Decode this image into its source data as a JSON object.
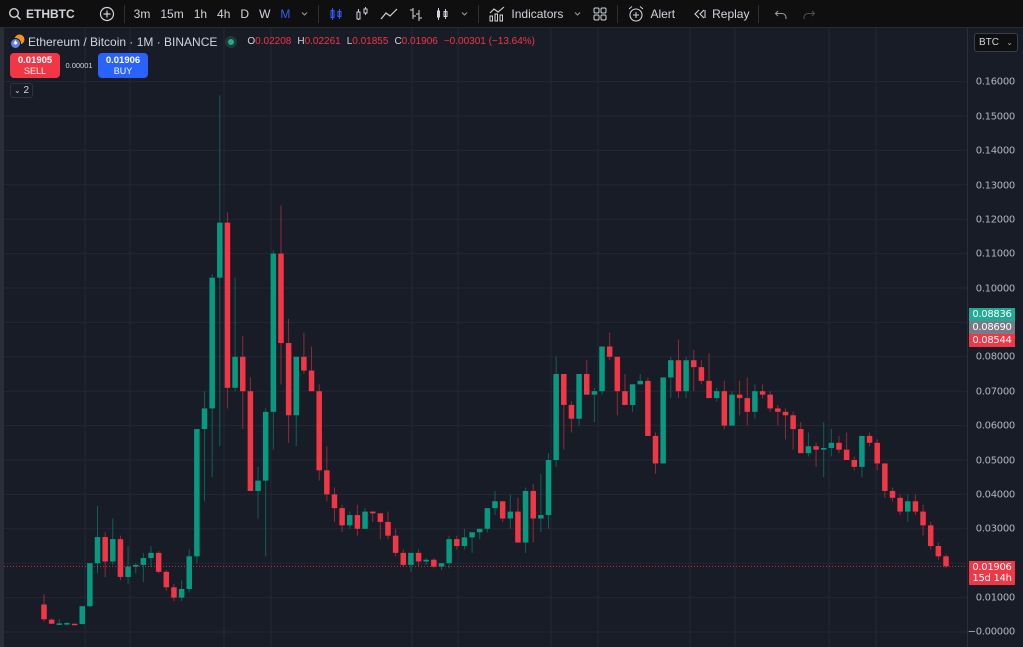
{
  "toolbar": {
    "symbol": "ETHBTC",
    "intervals": [
      "3m",
      "15m",
      "1h",
      "4h",
      "D",
      "W",
      "M"
    ],
    "active_interval": "M",
    "indicators_label": "Indicators",
    "alert_label": "Alert",
    "replay_label": "Replay"
  },
  "legend": {
    "title": "Ethereum / Bitcoin · 1M · BINANCE",
    "o_label": "O",
    "o": "0.02208",
    "h_label": "H",
    "h": "0.02261",
    "l_label": "L",
    "l": "0.01855",
    "c_label": "C",
    "c": "0.01906",
    "change": "−0.00301 (−13.64%)"
  },
  "trade": {
    "sell_price": "0.01905",
    "sell_label": "SELL",
    "spread": "0.00001",
    "buy_price": "0.01906",
    "buy_label": "BUY"
  },
  "collapse": {
    "label": "2"
  },
  "price_axis": {
    "currency": "BTC",
    "ticks": [
      "0.16000",
      "0.15000",
      "0.14000",
      "0.13000",
      "0.12000",
      "0.11000",
      "0.10000",
      "0.08000",
      "0.07000",
      "0.06000",
      "0.05000",
      "0.04000",
      "0.03000",
      "0.01000",
      "−0.00000"
    ],
    "tags": [
      {
        "value": "0.08836",
        "color": "#22ab94"
      },
      {
        "value": "0.08690",
        "color": "#787b86"
      },
      {
        "value": "0.08544",
        "color": "#f23645"
      }
    ],
    "last_price": "0.01906",
    "countdown": "15d 14h"
  },
  "colors": {
    "up": "#089981",
    "down": "#f23645",
    "accent": "#2962ff",
    "background": "#181c27"
  },
  "chart_data": {
    "type": "candlestick",
    "title": "Ethereum / Bitcoin · 1M · BINANCE",
    "ylabel": "BTC",
    "ylim": [
      -0.001,
      0.17
    ],
    "note": "Monthly OHLC candles, values estimated from pixel positions",
    "candles": [
      [
        0.008,
        0.011,
        0.003,
        0.0037
      ],
      [
        0.0036,
        0.004,
        0.0023,
        0.0024
      ],
      [
        0.0025,
        0.0037,
        0.002,
        0.0025
      ],
      [
        0.0025,
        0.003,
        0.0019,
        0.0026
      ],
      [
        0.0024,
        0.0025,
        0.002,
        0.0023
      ],
      [
        0.0023,
        0.006,
        0.0022,
        0.0075
      ],
      [
        0.0075,
        0.02,
        0.0072,
        0.02
      ],
      [
        0.02,
        0.0366,
        0.017,
        0.0276
      ],
      [
        0.0276,
        0.029,
        0.016,
        0.0205
      ],
      [
        0.0205,
        0.033,
        0.0195,
        0.027
      ],
      [
        0.027,
        0.028,
        0.015,
        0.016
      ],
      [
        0.016,
        0.025,
        0.014,
        0.019
      ],
      [
        0.019,
        0.02,
        0.017,
        0.0195
      ],
      [
        0.0195,
        0.023,
        0.0145,
        0.0215
      ],
      [
        0.0215,
        0.025,
        0.019,
        0.023
      ],
      [
        0.023,
        0.0235,
        0.017,
        0.0175
      ],
      [
        0.0175,
        0.018,
        0.012,
        0.013
      ],
      [
        0.013,
        0.014,
        0.009,
        0.01
      ],
      [
        0.01,
        0.015,
        0.009,
        0.0125
      ],
      [
        0.0125,
        0.024,
        0.0115,
        0.022
      ],
      [
        0.022,
        0.059,
        0.02,
        0.059
      ],
      [
        0.059,
        0.07,
        0.038,
        0.065
      ],
      [
        0.065,
        0.104,
        0.045,
        0.103
      ],
      [
        0.103,
        0.156,
        0.054,
        0.119
      ],
      [
        0.119,
        0.122,
        0.065,
        0.071
      ],
      [
        0.071,
        0.103,
        0.07,
        0.08
      ],
      [
        0.08,
        0.086,
        0.059,
        0.07
      ],
      [
        0.07,
        0.074,
        0.056,
        0.041
      ],
      [
        0.041,
        0.048,
        0.033,
        0.044
      ],
      [
        0.044,
        0.065,
        0.022,
        0.064
      ],
      [
        0.064,
        0.111,
        0.053,
        0.11
      ],
      [
        0.11,
        0.124,
        0.072,
        0.084
      ],
      [
        0.084,
        0.091,
        0.055,
        0.063
      ],
      [
        0.063,
        0.074,
        0.054,
        0.08
      ],
      [
        0.08,
        0.087,
        0.075,
        0.076
      ],
      [
        0.076,
        0.083,
        0.07,
        0.07
      ],
      [
        0.07,
        0.072,
        0.044,
        0.047
      ],
      [
        0.047,
        0.054,
        0.038,
        0.04
      ],
      [
        0.04,
        0.042,
        0.032,
        0.036
      ],
      [
        0.036,
        0.037,
        0.029,
        0.031
      ],
      [
        0.031,
        0.035,
        0.03,
        0.034
      ],
      [
        0.034,
        0.037,
        0.028,
        0.03
      ],
      [
        0.03,
        0.036,
        0.03,
        0.035
      ],
      [
        0.035,
        0.035,
        0.032,
        0.0345
      ],
      [
        0.0345,
        0.034,
        0.027,
        0.032
      ],
      [
        0.032,
        0.035,
        0.027,
        0.028
      ],
      [
        0.028,
        0.03,
        0.022,
        0.023
      ],
      [
        0.023,
        0.024,
        0.019,
        0.0195
      ],
      [
        0.0195,
        0.023,
        0.0175,
        0.023
      ],
      [
        0.023,
        0.024,
        0.019,
        0.0205
      ],
      [
        0.0205,
        0.0215,
        0.0195,
        0.021
      ],
      [
        0.021,
        0.0215,
        0.0185,
        0.019
      ],
      [
        0.019,
        0.02,
        0.018,
        0.02
      ],
      [
        0.02,
        0.028,
        0.0185,
        0.027
      ],
      [
        0.027,
        0.028,
        0.024,
        0.025
      ],
      [
        0.025,
        0.03,
        0.024,
        0.0275
      ],
      [
        0.0275,
        0.029,
        0.023,
        0.029
      ],
      [
        0.029,
        0.03,
        0.027,
        0.03
      ],
      [
        0.03,
        0.036,
        0.029,
        0.036
      ],
      [
        0.036,
        0.041,
        0.034,
        0.038
      ],
      [
        0.038,
        0.038,
        0.032,
        0.033
      ],
      [
        0.033,
        0.04,
        0.03,
        0.035
      ],
      [
        0.035,
        0.039,
        0.026,
        0.026
      ],
      [
        0.026,
        0.042,
        0.023,
        0.041
      ],
      [
        0.041,
        0.043,
        0.026,
        0.033
      ],
      [
        0.033,
        0.046,
        0.029,
        0.034
      ],
      [
        0.034,
        0.052,
        0.03,
        0.05
      ],
      [
        0.05,
        0.08,
        0.048,
        0.075
      ],
      [
        0.075,
        0.073,
        0.053,
        0.066
      ],
      [
        0.066,
        0.067,
        0.058,
        0.062
      ],
      [
        0.062,
        0.075,
        0.06,
        0.075
      ],
      [
        0.075,
        0.079,
        0.069,
        0.069
      ],
      [
        0.069,
        0.071,
        0.061,
        0.07
      ],
      [
        0.07,
        0.083,
        0.069,
        0.083
      ],
      [
        0.083,
        0.087,
        0.079,
        0.08
      ],
      [
        0.08,
        0.079,
        0.063,
        0.07
      ],
      [
        0.07,
        0.075,
        0.066,
        0.066
      ],
      [
        0.066,
        0.072,
        0.064,
        0.072
      ],
      [
        0.072,
        0.075,
        0.072,
        0.073
      ],
      [
        0.073,
        0.074,
        0.057,
        0.057
      ],
      [
        0.057,
        0.058,
        0.046,
        0.049
      ],
      [
        0.049,
        0.074,
        0.05,
        0.074
      ],
      [
        0.074,
        0.08,
        0.068,
        0.079
      ],
      [
        0.079,
        0.085,
        0.068,
        0.07
      ],
      [
        0.07,
        0.08,
        0.068,
        0.079
      ],
      [
        0.079,
        0.082,
        0.07,
        0.077
      ],
      [
        0.077,
        0.079,
        0.072,
        0.073
      ],
      [
        0.073,
        0.081,
        0.072,
        0.068
      ],
      [
        0.068,
        0.071,
        0.067,
        0.07
      ],
      [
        0.07,
        0.073,
        0.059,
        0.06
      ],
      [
        0.06,
        0.07,
        0.06,
        0.069
      ],
      [
        0.069,
        0.073,
        0.063,
        0.068
      ],
      [
        0.068,
        0.074,
        0.06,
        0.064
      ],
      [
        0.064,
        0.072,
        0.062,
        0.07
      ],
      [
        0.07,
        0.072,
        0.068,
        0.069
      ],
      [
        0.069,
        0.07,
        0.064,
        0.065
      ],
      [
        0.065,
        0.066,
        0.06,
        0.064
      ],
      [
        0.064,
        0.065,
        0.056,
        0.063
      ],
      [
        0.063,
        0.064,
        0.053,
        0.059
      ],
      [
        0.059,
        0.061,
        0.052,
        0.052
      ],
      [
        0.052,
        0.058,
        0.051,
        0.054
      ],
      [
        0.054,
        0.055,
        0.048,
        0.053
      ],
      [
        0.053,
        0.061,
        0.045,
        0.0535
      ],
      [
        0.0535,
        0.059,
        0.051,
        0.055
      ],
      [
        0.055,
        0.057,
        0.052,
        0.053
      ],
      [
        0.053,
        0.058,
        0.051,
        0.05
      ],
      [
        0.05,
        0.051,
        0.047,
        0.048
      ],
      [
        0.048,
        0.057,
        0.045,
        0.057
      ],
      [
        0.057,
        0.058,
        0.054,
        0.055
      ],
      [
        0.055,
        0.056,
        0.047,
        0.049
      ],
      [
        0.049,
        0.049,
        0.039,
        0.041
      ],
      [
        0.041,
        0.042,
        0.038,
        0.039
      ],
      [
        0.039,
        0.04,
        0.034,
        0.035
      ],
      [
        0.035,
        0.04,
        0.032,
        0.038
      ],
      [
        0.038,
        0.04,
        0.034,
        0.035
      ],
      [
        0.035,
        0.037,
        0.028,
        0.031
      ],
      [
        0.031,
        0.032,
        0.024,
        0.025
      ],
      [
        0.025,
        0.026,
        0.021,
        0.022
      ],
      [
        0.022,
        0.0226,
        0.0186,
        0.0191
      ]
    ]
  }
}
